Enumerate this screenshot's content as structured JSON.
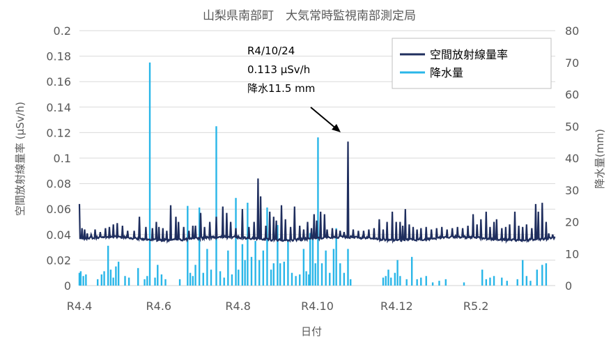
{
  "chart_data": {
    "type": "line",
    "title": "山梨県南部町　大気常時監視南部測定局",
    "xlabel": "日付",
    "ylabel": "空間放射線量率 (μSv/h)",
    "y2label": "降水量(mm)",
    "x_ticks": [
      "R4.4",
      "R4.6",
      "R4.8",
      "R4.10",
      "R4.12",
      "R5.2"
    ],
    "y_ticks": [
      "0",
      "0.02",
      "0.04",
      "0.06",
      "0.08",
      "0.1",
      "0.12",
      "0.14",
      "0.16",
      "0.18",
      "0.2"
    ],
    "y2_ticks": [
      "0",
      "10",
      "20",
      "30",
      "40",
      "50",
      "60",
      "70",
      "80"
    ],
    "ylim": [
      0,
      0.2
    ],
    "y2lim": [
      0,
      80
    ],
    "x_range_days": [
      0,
      365
    ],
    "legend_position": "top-right",
    "annotation": {
      "lines": [
        "R4/10/24",
        "0.113 μSv/h",
        "降水11.5 mm"
      ],
      "x_day": 206,
      "value": 0.113
    },
    "series": [
      {
        "name": "空間放射線量率",
        "color": "#1f2e5e",
        "axis": "left",
        "baseline": 0.036,
        "spikes": [
          [
            0,
            0.064
          ],
          [
            2,
            0.045
          ],
          [
            4,
            0.044
          ],
          [
            6,
            0.041
          ],
          [
            9,
            0.04
          ],
          [
            12,
            0.044
          ],
          [
            16,
            0.042
          ],
          [
            20,
            0.045
          ],
          [
            23,
            0.046
          ],
          [
            26,
            0.048
          ],
          [
            29,
            0.049
          ],
          [
            33,
            0.047
          ],
          [
            37,
            0.043
          ],
          [
            42,
            0.043
          ],
          [
            46,
            0.054
          ],
          [
            51,
            0.046
          ],
          [
            56,
            0.045
          ],
          [
            59,
            0.05
          ],
          [
            61,
            0.046
          ],
          [
            64,
            0.045
          ],
          [
            67,
            0.043
          ],
          [
            70,
            0.063
          ],
          [
            74,
            0.054
          ],
          [
            76,
            0.05
          ],
          [
            80,
            0.046
          ],
          [
            84,
            0.043
          ],
          [
            87,
            0.047
          ],
          [
            89,
            0.047
          ],
          [
            93,
            0.057
          ],
          [
            96,
            0.046
          ],
          [
            100,
            0.05
          ],
          [
            105,
            0.054
          ],
          [
            110,
            0.062
          ],
          [
            113,
            0.057
          ],
          [
            116,
            0.05
          ],
          [
            120,
            0.045
          ],
          [
            125,
            0.06
          ],
          [
            130,
            0.046
          ],
          [
            134,
            0.05
          ],
          [
            137,
            0.084
          ],
          [
            139,
            0.07
          ],
          [
            143,
            0.047
          ],
          [
            146,
            0.058
          ],
          [
            149,
            0.054
          ],
          [
            151,
            0.051
          ],
          [
            155,
            0.063
          ],
          [
            158,
            0.052
          ],
          [
            162,
            0.046
          ],
          [
            165,
            0.062
          ],
          [
            169,
            0.047
          ],
          [
            172,
            0.044
          ],
          [
            175,
            0.05
          ],
          [
            178,
            0.045
          ],
          [
            180,
            0.056
          ],
          [
            182,
            0.051
          ],
          [
            185,
            0.058
          ],
          [
            188,
            0.056
          ],
          [
            190,
            0.044
          ],
          [
            194,
            0.045
          ],
          [
            197,
            0.044
          ],
          [
            200,
            0.043
          ],
          [
            203,
            0.042
          ],
          [
            206,
            0.113
          ],
          [
            210,
            0.044
          ],
          [
            214,
            0.043
          ],
          [
            218,
            0.043
          ],
          [
            222,
            0.044
          ],
          [
            226,
            0.045
          ],
          [
            230,
            0.052
          ],
          [
            233,
            0.044
          ],
          [
            236,
            0.05
          ],
          [
            240,
            0.058
          ],
          [
            243,
            0.05
          ],
          [
            246,
            0.05
          ],
          [
            248,
            0.047
          ],
          [
            250,
            0.06
          ],
          [
            253,
            0.048
          ],
          [
            256,
            0.046
          ],
          [
            259,
            0.044
          ],
          [
            262,
            0.045
          ],
          [
            266,
            0.046
          ],
          [
            270,
            0.044
          ],
          [
            274,
            0.045
          ],
          [
            278,
            0.046
          ],
          [
            282,
            0.044
          ],
          [
            286,
            0.045
          ],
          [
            290,
            0.046
          ],
          [
            294,
            0.045
          ],
          [
            298,
            0.047
          ],
          [
            302,
            0.056
          ],
          [
            305,
            0.048
          ],
          [
            308,
            0.052
          ],
          [
            312,
            0.058
          ],
          [
            315,
            0.046
          ],
          [
            318,
            0.05
          ],
          [
            320,
            0.052
          ],
          [
            324,
            0.045
          ],
          [
            327,
            0.046
          ],
          [
            330,
            0.048
          ],
          [
            334,
            0.058
          ],
          [
            337,
            0.047
          ],
          [
            340,
            0.046
          ],
          [
            343,
            0.048
          ],
          [
            347,
            0.045
          ],
          [
            350,
            0.064
          ],
          [
            352,
            0.058
          ],
          [
            355,
            0.065
          ],
          [
            358,
            0.05
          ],
          [
            360,
            0.041
          ],
          [
            363,
            0.04
          ]
        ]
      },
      {
        "name": "降水量",
        "color": "#29b6e8",
        "axis": "right",
        "values": [
          [
            0,
            4
          ],
          [
            1,
            4.5
          ],
          [
            3,
            3
          ],
          [
            5,
            3.5
          ],
          [
            14,
            2
          ],
          [
            17,
            3.5
          ],
          [
            19,
            4.5
          ],
          [
            22,
            12.5
          ],
          [
            24,
            5
          ],
          [
            26,
            2.5
          ],
          [
            28,
            6
          ],
          [
            30,
            7.5
          ],
          [
            35,
            3
          ],
          [
            38,
            2.5
          ],
          [
            45,
            5.5
          ],
          [
            50,
            2
          ],
          [
            52,
            3
          ],
          [
            54,
            70
          ],
          [
            58,
            2.5
          ],
          [
            60,
            6.5
          ],
          [
            63,
            3.5
          ],
          [
            66,
            2
          ],
          [
            77,
            2
          ],
          [
            83,
            25
          ],
          [
            85,
            4
          ],
          [
            87,
            3
          ],
          [
            89,
            6.5
          ],
          [
            92,
            24.5
          ],
          [
            95,
            4
          ],
          [
            98,
            11.5
          ],
          [
            101,
            5
          ],
          [
            105,
            50
          ],
          [
            108,
            4.5
          ],
          [
            111,
            2.5
          ],
          [
            114,
            11
          ],
          [
            117,
            3.5
          ],
          [
            120,
            27.5
          ],
          [
            122,
            5
          ],
          [
            125,
            13
          ],
          [
            127,
            8
          ],
          [
            129,
            26
          ],
          [
            132,
            9
          ],
          [
            135,
            14
          ],
          [
            138,
            8
          ],
          [
            141,
            11
          ],
          [
            144,
            24.5
          ],
          [
            147,
            5
          ],
          [
            149,
            7
          ],
          [
            152,
            19
          ],
          [
            154,
            7
          ],
          [
            157,
            7.5
          ],
          [
            160,
            14.5
          ],
          [
            163,
            4
          ],
          [
            166,
            3
          ],
          [
            169,
            3.5
          ],
          [
            172,
            11.5
          ],
          [
            174,
            4.5
          ],
          [
            176,
            3.5
          ],
          [
            177,
            16.5
          ],
          [
            179,
            15
          ],
          [
            181,
            7
          ],
          [
            183,
            46.5
          ],
          [
            186,
            7
          ],
          [
            189,
            11
          ],
          [
            192,
            4
          ],
          [
            195,
            11.5
          ],
          [
            197,
            18
          ],
          [
            200,
            7
          ],
          [
            203,
            4
          ],
          [
            206,
            11.5
          ],
          [
            208,
            2
          ],
          [
            233,
            2.5
          ],
          [
            235,
            3
          ],
          [
            237,
            5
          ],
          [
            239,
            2.5
          ],
          [
            242,
            4
          ],
          [
            244,
            8
          ],
          [
            246,
            3
          ],
          [
            251,
            2
          ],
          [
            255,
            9
          ],
          [
            259,
            2
          ],
          [
            262,
            2.5
          ],
          [
            266,
            3
          ],
          [
            271,
            1
          ],
          [
            276,
            1.5
          ],
          [
            281,
            2
          ],
          [
            295,
            1
          ],
          [
            309,
            5
          ],
          [
            312,
            2
          ],
          [
            315,
            2.5
          ],
          [
            318,
            3
          ],
          [
            324,
            2.5
          ],
          [
            328,
            1.5
          ],
          [
            336,
            2
          ],
          [
            340,
            8
          ],
          [
            343,
            3
          ],
          [
            346,
            1.5
          ],
          [
            351,
            5
          ],
          [
            355,
            6.5
          ],
          [
            358,
            7
          ]
        ]
      }
    ]
  }
}
